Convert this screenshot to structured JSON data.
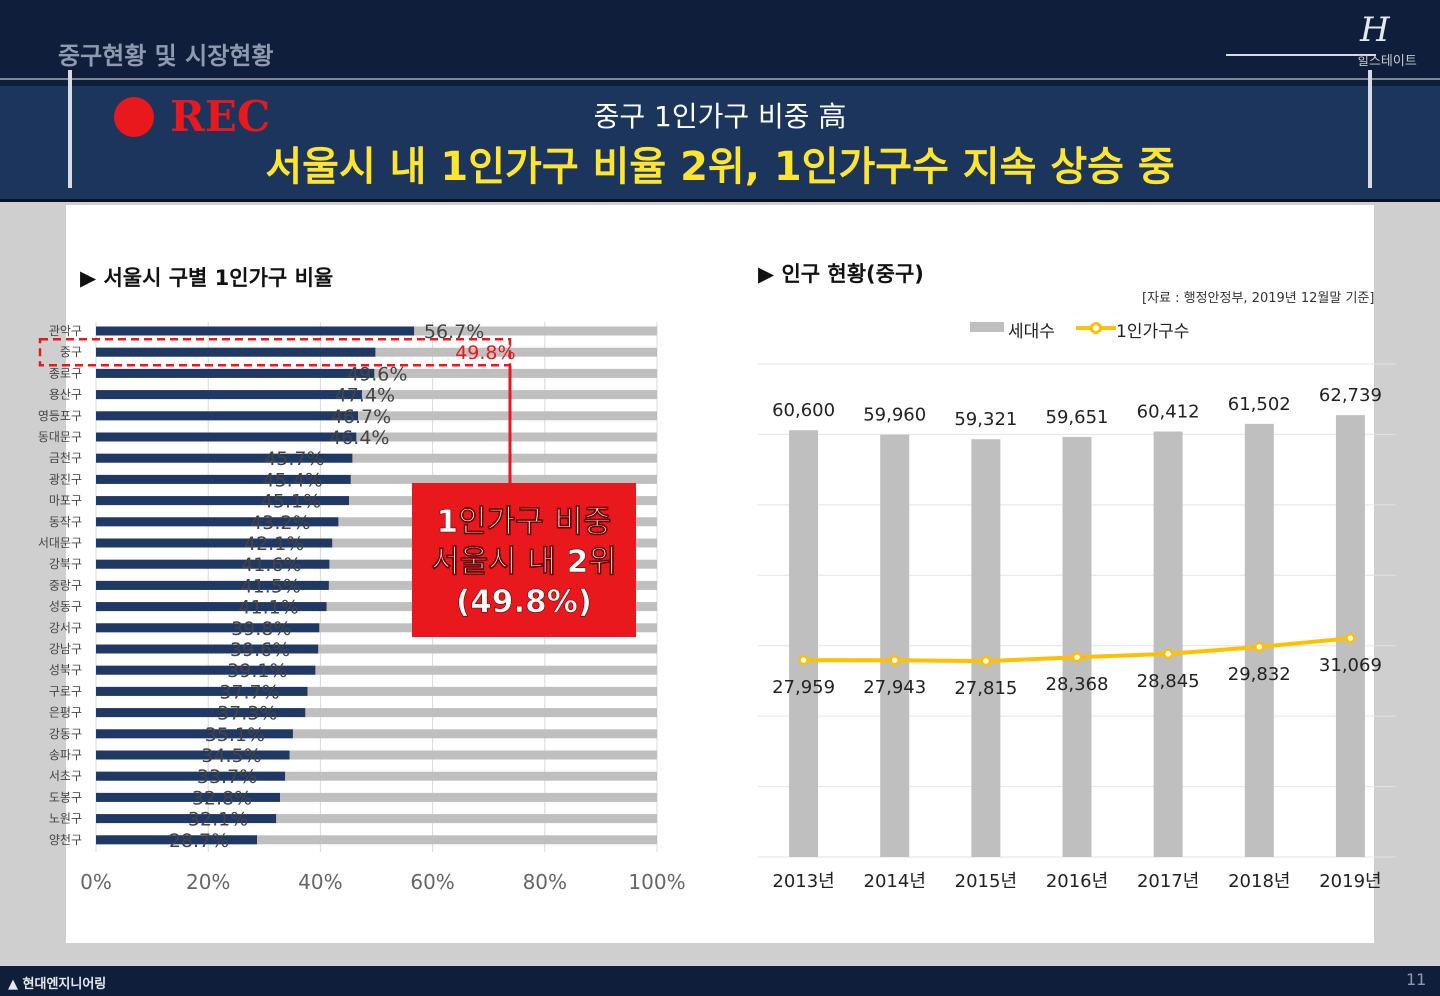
{
  "header": {
    "section_title": "중구현황 및 시장현황",
    "logo_mark": "H",
    "logo_text": "힐스테이트"
  },
  "banner": {
    "rec_label": "REC",
    "subtitle": "중구 1인가구 비중 高",
    "title": "서울시 내 1인가구 비율 2위, 1인가구수 지속 상승 중"
  },
  "footer": {
    "company": "현대엔지니어링",
    "page_number": "11"
  },
  "left_chart_heading": "▶ 서울시 구별 1인가구 비율",
  "right_chart_heading": "▶ 인구 현황(중구)",
  "source_note": "[자료 : 행정안정부, 2019년 12월말 기준]",
  "callout": {
    "lines": [
      "1인가구 비중",
      "서울시 내 2위",
      "(49.8%)"
    ]
  },
  "colors": {
    "navy_bar": "#1f3864",
    "gray_bar": "#bfbfbf",
    "highlight_red": "#e8181c",
    "line_yellow": "#ffc000",
    "banner_yellow": "#ffe52e"
  },
  "chart_data": [
    {
      "type": "bar",
      "orientation": "horizontal",
      "categories": [
        "관악구",
        "중구",
        "종로구",
        "용산구",
        "영등포구",
        "동대문구",
        "금천구",
        "광진구",
        "마포구",
        "동작구",
        "서대문구",
        "강북구",
        "중랑구",
        "성동구",
        "강서구",
        "강남구",
        "성북구",
        "구로구",
        "은평구",
        "강동구",
        "송파구",
        "서초구",
        "도봉구",
        "노원구",
        "양천구"
      ],
      "values": [
        56.7,
        49.8,
        49.6,
        47.4,
        46.7,
        46.4,
        45.7,
        45.4,
        45.1,
        43.2,
        42.1,
        41.6,
        41.5,
        41.1,
        39.8,
        39.6,
        39.1,
        37.7,
        37.3,
        35.1,
        34.5,
        33.7,
        32.8,
        32.1,
        28.7
      ],
      "value_labels": [
        "56.7%",
        "49.8%",
        "49.6%",
        "47.4%",
        "46.7%",
        "46.4%",
        "45.7%",
        "45.4%",
        "45.1%",
        "43.2%",
        "42.1%",
        "41.6%",
        "41.5%",
        "41.1%",
        "39.8%",
        "39.6%",
        "39.1%",
        "37.7%",
        "37.3%",
        "35.1%",
        "34.5%",
        "33.7%",
        "32.8%",
        "32.1%",
        "28.7%"
      ],
      "highlight": "중구",
      "xlim": [
        0,
        100
      ],
      "x_ticks": [
        "0%",
        "20%",
        "40%",
        "60%",
        "80%",
        "100%"
      ]
    },
    {
      "type": "bar+line",
      "categories": [
        "2013년",
        "2014년",
        "2015년",
        "2016년",
        "2017년",
        "2018년",
        "2019년"
      ],
      "series": [
        {
          "name": "세대수",
          "type": "bar",
          "values": [
            60600,
            59960,
            59321,
            59651,
            60412,
            61502,
            62739
          ],
          "labels": [
            "60,600",
            "59,960",
            "59,321",
            "59,651",
            "60,412",
            "61,502",
            "62,739"
          ]
        },
        {
          "name": "1인가구수",
          "type": "line",
          "values": [
            27959,
            27943,
            27815,
            28368,
            28845,
            29832,
            31069
          ],
          "labels": [
            "27,959",
            "27,943",
            "27,815",
            "28,368",
            "28,845",
            "29,832",
            "31,069"
          ]
        }
      ],
      "ylim": [
        0,
        70000
      ],
      "grid": true,
      "legend": "top-right"
    }
  ]
}
